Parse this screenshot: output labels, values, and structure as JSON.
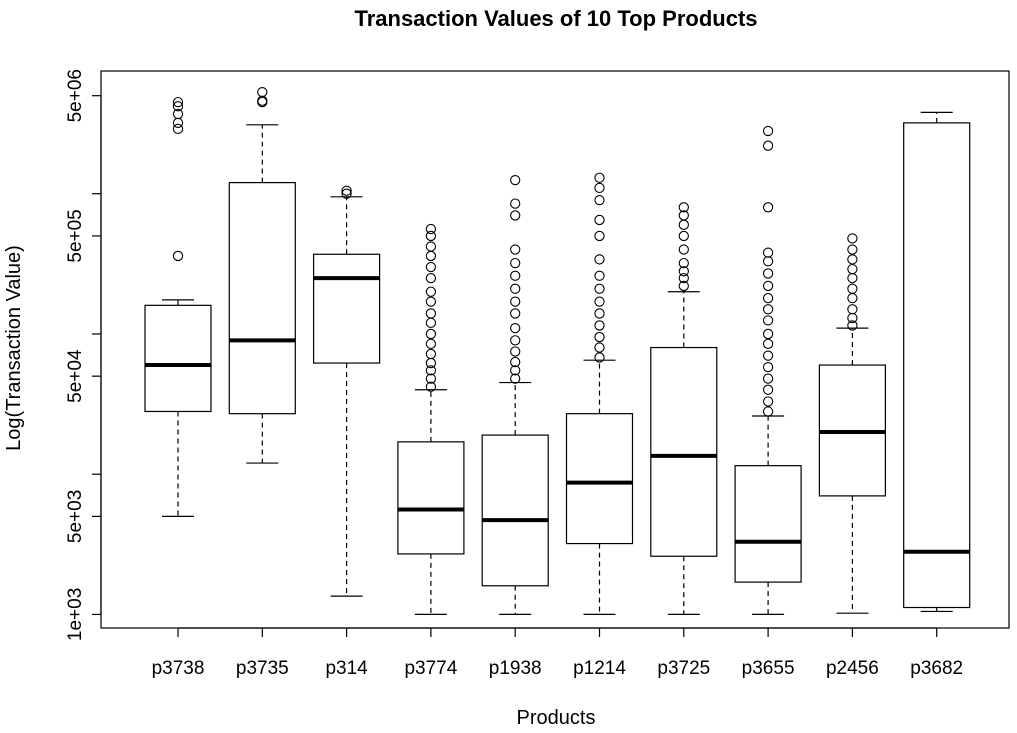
{
  "chart_data": {
    "type": "boxplot",
    "title": "Transaction Values of 10 Top Products",
    "xlabel": "Products",
    "ylabel": "Log(Transaction Value)",
    "y_scale": "log",
    "ylim": [
      800,
      7500000
    ],
    "y_tick_values": [
      1000,
      5000,
      50000,
      500000,
      5000000
    ],
    "y_tick_labels": [
      "1e+03",
      "5e+03",
      "5e+04",
      "5e+05",
      "5e+06"
    ],
    "y_minor_tick_values": [
      10000,
      100000,
      1000000
    ],
    "grid": false,
    "categories": [
      "p3738",
      "p3735",
      "p314",
      "p3774",
      "p1938",
      "p1214",
      "p3725",
      "p3655",
      "p2456",
      "p3682"
    ],
    "boxes": [
      {
        "name": "p3738",
        "whisker_low": 5000,
        "q1": 28000,
        "median": 60000,
        "q3": 160000,
        "whisker_high": 175000,
        "outliers": [
          360000,
          2900000,
          3200000,
          3700000,
          4200000,
          4500000
        ]
      },
      {
        "name": "p3735",
        "whisker_low": 12000,
        "q1": 27000,
        "median": 90000,
        "q3": 1200000,
        "whisker_high": 3100000,
        "outliers": [
          4500000,
          4600000,
          5300000
        ]
      },
      {
        "name": "p314",
        "whisker_low": 1350,
        "q1": 62000,
        "median": 250000,
        "q3": 370000,
        "whisker_high": 950000,
        "outliers": [
          1000000,
          1050000
        ]
      },
      {
        "name": "p3774",
        "whisker_low": 1000,
        "q1": 2700,
        "median": 5600,
        "q3": 17000,
        "whisker_high": 40000,
        "outliers": [
          42000,
          48000,
          55000,
          62000,
          72000,
          85000,
          100000,
          120000,
          140000,
          170000,
          200000,
          250000,
          300000,
          360000,
          420000,
          500000,
          560000
        ]
      },
      {
        "name": "p1938",
        "whisker_low": 1000,
        "q1": 1600,
        "median": 4700,
        "q3": 19000,
        "whisker_high": 45000,
        "outliers": [
          48000,
          55000,
          63000,
          75000,
          90000,
          110000,
          140000,
          170000,
          210000,
          260000,
          320000,
          400000,
          700000,
          850000,
          1250000
        ]
      },
      {
        "name": "p1214",
        "whisker_low": 1000,
        "q1": 3200,
        "median": 8700,
        "q3": 27000,
        "whisker_high": 65000,
        "outliers": [
          68000,
          80000,
          95000,
          115000,
          140000,
          170000,
          210000,
          260000,
          340000,
          500000,
          650000,
          900000,
          1100000,
          1300000
        ]
      },
      {
        "name": "p3725",
        "whisker_low": 1000,
        "q1": 2600,
        "median": 13500,
        "q3": 80000,
        "whisker_high": 200000,
        "outliers": [
          220000,
          250000,
          280000,
          320000,
          400000,
          500000,
          600000,
          700000,
          800000
        ]
      },
      {
        "name": "p3655",
        "whisker_low": 1000,
        "q1": 1700,
        "median": 3300,
        "q3": 11500,
        "whisker_high": 26000,
        "outliers": [
          28000,
          33000,
          40000,
          48000,
          58000,
          70000,
          85000,
          100000,
          125000,
          150000,
          180000,
          220000,
          270000,
          330000,
          380000,
          800000,
          2200000,
          2800000
        ]
      },
      {
        "name": "p2456",
        "whisker_low": 1020,
        "q1": 7000,
        "median": 20000,
        "q3": 60000,
        "whisker_high": 110000,
        "outliers": [
          115000,
          130000,
          150000,
          180000,
          210000,
          250000,
          290000,
          340000,
          400000,
          480000
        ]
      },
      {
        "name": "p3682",
        "whisker_low": 1050,
        "q1": 1120,
        "median": 2800,
        "q3": 3200000,
        "whisker_high": 3800000,
        "outliers": []
      }
    ]
  }
}
